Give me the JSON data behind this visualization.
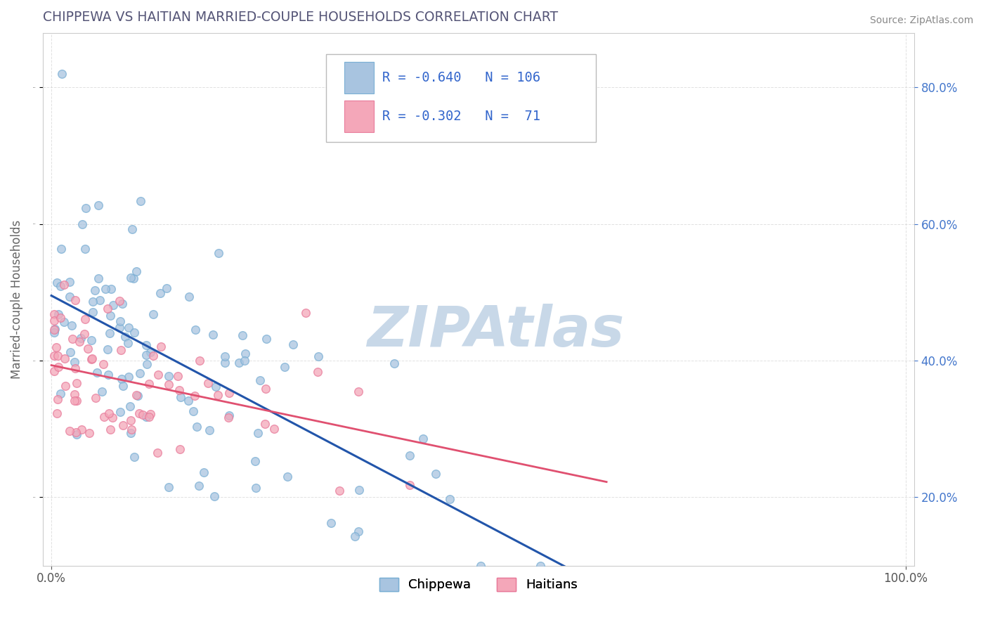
{
  "title": "CHIPPEWA VS HAITIAN MARRIED-COUPLE HOUSEHOLDS CORRELATION CHART",
  "source": "Source: ZipAtlas.com",
  "ylabel": "Married-couple Households",
  "legend_label1": "Chippewa",
  "legend_label2": "Haitians",
  "R1": -0.64,
  "N1": 106,
  "R2": -0.302,
  "N2": 71,
  "color1": "#a8c4e0",
  "color2": "#f4a7b9",
  "edge_color1": "#7aafd4",
  "edge_color2": "#e87a9a",
  "line_color1": "#2255aa",
  "line_color2": "#e05070",
  "watermark": "ZIPAtlas",
  "watermark_color": "#c8d8e8",
  "background_color": "#ffffff",
  "grid_color": "#cccccc",
  "title_color": "#555577",
  "source_color": "#888888",
  "legend_text_color": "#3366cc",
  "legend_N_color": "#3366cc",
  "xlim": [
    0,
    100
  ],
  "ylim": [
    10,
    88
  ],
  "xticks": [
    0,
    100
  ],
  "yticks": [
    20,
    40,
    60,
    80
  ]
}
